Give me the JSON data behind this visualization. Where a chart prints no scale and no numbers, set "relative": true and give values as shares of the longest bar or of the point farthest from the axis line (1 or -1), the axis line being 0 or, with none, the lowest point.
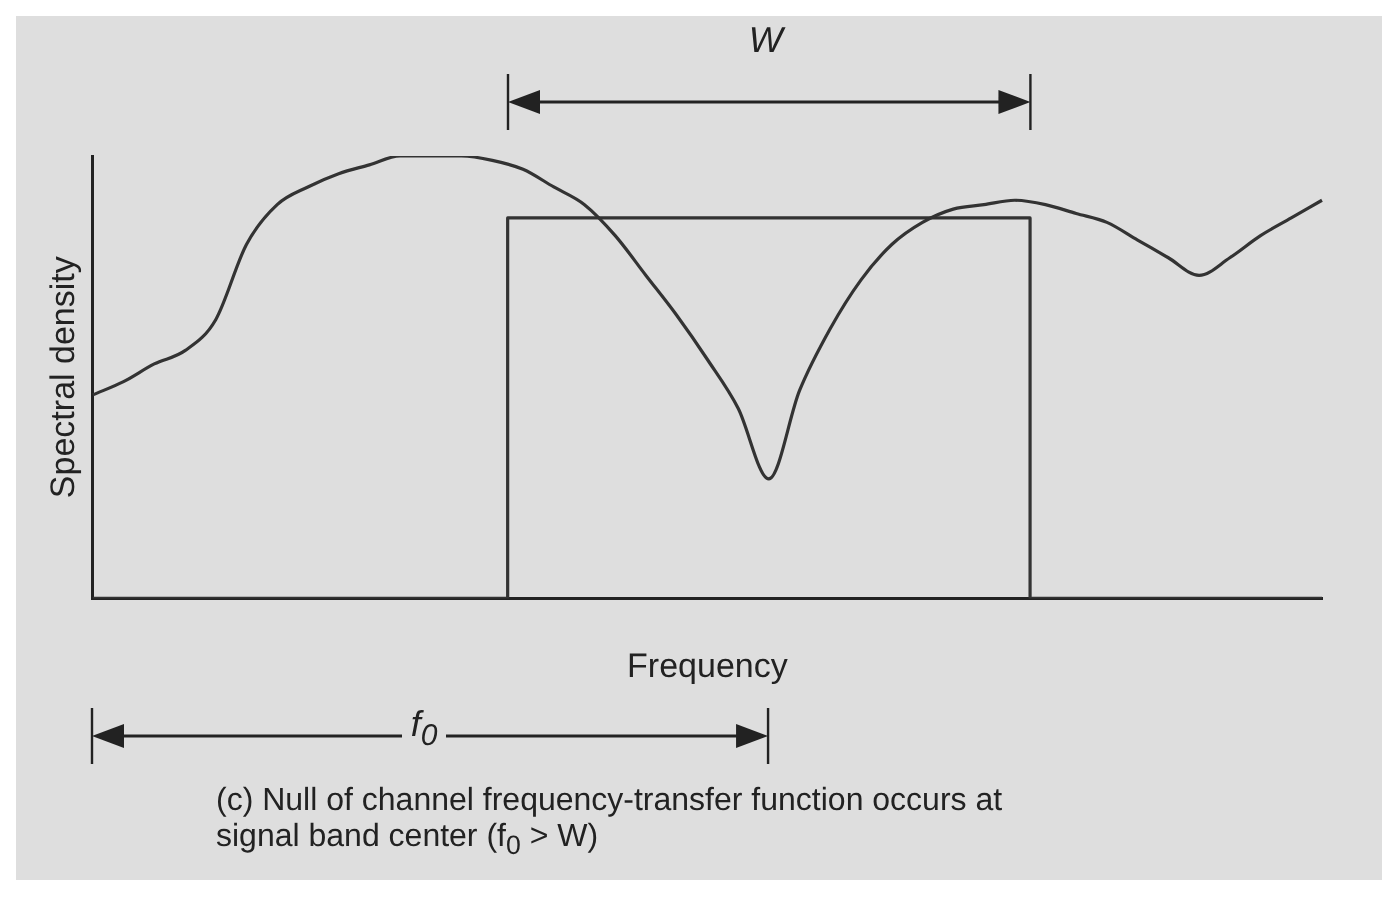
{
  "chart_data": {
    "type": "line",
    "relative": true,
    "xlabel": "Frequency",
    "ylabel": "Spectral density",
    "grid": false,
    "legend": false,
    "marker": "none",
    "line_style": "solid",
    "categories": [
      null,
      null,
      null,
      null,
      null,
      null,
      null,
      null,
      null,
      null,
      null,
      null,
      null,
      null,
      null,
      null,
      null,
      null,
      null,
      null,
      null,
      null,
      null,
      null,
      null,
      null,
      null,
      null,
      null,
      null,
      null,
      null,
      null,
      null,
      null,
      null,
      null,
      null,
      null,
      null,
      null
    ],
    "series": [
      {
        "color": "#333333",
        "values": [
          0.46,
          0.49,
          0.53,
          0.56,
          0.63,
          0.8,
          0.89,
          0.93,
          0.96,
          0.98,
          1,
          1,
          1,
          0.99,
          0.97,
          0.93,
          0.89,
          0.82,
          0.73,
          0.64,
          0.54,
          0.43,
          0.27,
          0.47,
          0.61,
          0.72,
          0.8,
          0.85,
          0.88,
          0.89,
          0.9,
          0.89,
          0.87,
          0.85,
          0.81,
          0.77,
          0.73,
          0.77,
          0.82,
          0.86,
          0.9
        ]
      },
      {
        "type": "step",
        "color": "#333333",
        "values": [
          0,
          0,
          0,
          0,
          0,
          0,
          0,
          0,
          0,
          0,
          0,
          0,
          0,
          0,
          0.86,
          0.86,
          0.86,
          0.86,
          0.86,
          0.86,
          0.86,
          0.86,
          0.86,
          0.86,
          0.86,
          0.86,
          0.86,
          0.86,
          0.86,
          0.86,
          0.86,
          0,
          0,
          0,
          0,
          0,
          0,
          0,
          0,
          0,
          0
        ]
      }
    ],
    "annotations": [
      "W",
      "f$_{0}$",
      "(c) Null of channel frequency-transfer function occurs at signal band center (f$_{0}$ > W)"
    ]
  }
}
